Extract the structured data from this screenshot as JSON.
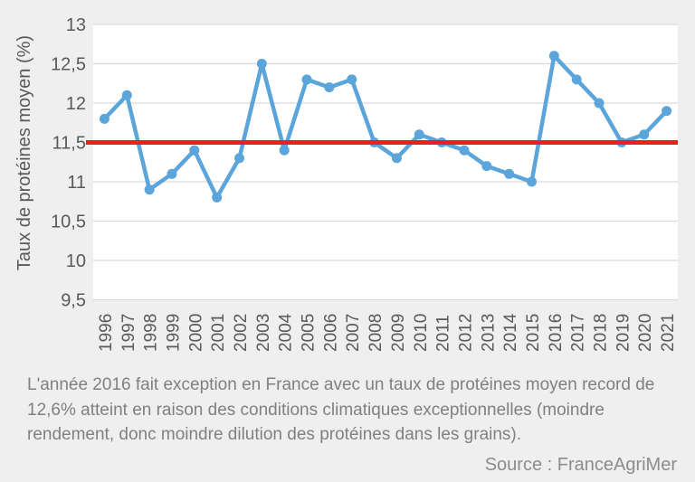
{
  "chart_data": {
    "type": "line",
    "title": "",
    "ylabel": "Taux de protéines moyen (%)",
    "xlabel": "",
    "categories": [
      "1996",
      "1997",
      "1998",
      "1999",
      "2000",
      "2001",
      "2002",
      "2003",
      "2004",
      "2005",
      "2006",
      "2007",
      "2008",
      "2009",
      "2010",
      "2011",
      "2012",
      "2013",
      "2014",
      "2015",
      "2016",
      "2017",
      "2018",
      "2019",
      "2020",
      "2021"
    ],
    "series": [
      {
        "name": "Taux de protéines moyen (%)",
        "color": "#5ba5db",
        "values": [
          11.8,
          12.1,
          10.9,
          11.1,
          11.4,
          10.8,
          11.3,
          12.5,
          11.4,
          12.3,
          12.2,
          12.3,
          11.5,
          11.3,
          11.6,
          11.5,
          11.4,
          11.2,
          11.1,
          11.0,
          12.6,
          12.3,
          12.0,
          11.5,
          11.6,
          11.9
        ]
      }
    ],
    "reference_line": {
      "value": 11.5,
      "color": "#e5231b"
    },
    "ylim": [
      9.5,
      13
    ],
    "ytick_step": 0.5,
    "ytick_labels": [
      "13",
      "12,5",
      "12",
      "11,5",
      "11",
      "10,5",
      "10",
      "9,5"
    ],
    "decimal_separator": ",",
    "grid": true,
    "legend": "none"
  },
  "caption": {
    "lines": [
      "L'année 2016 fait exception en France avec un taux de protéines moyen record de",
      "12,6% atteint en raison des conditions climatiques exceptionnelles (moindre",
      "rendement, donc moindre dilution des protéines dans les grains)."
    ]
  },
  "source": {
    "label": "Source : FranceAgriMer"
  },
  "colors": {
    "background": "#efefef",
    "plot_background": "#ffffff",
    "gridline": "#d9d9d9",
    "axis_text": "#595959"
  }
}
